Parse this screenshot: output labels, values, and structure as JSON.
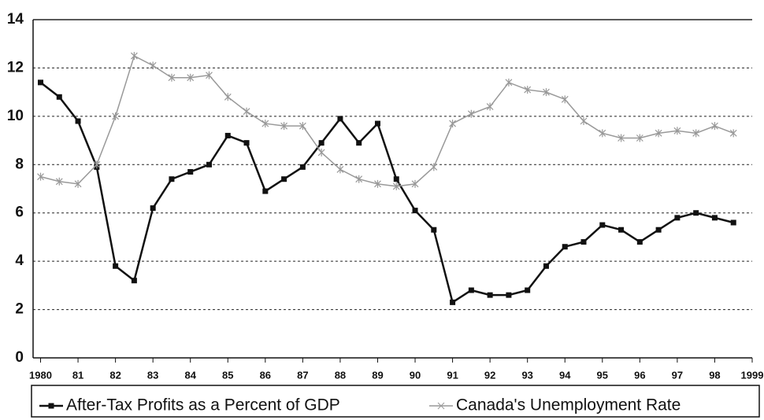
{
  "chart_data": {
    "type": "line",
    "x": [
      1980,
      1980.5,
      1981,
      1981.5,
      1982,
      1982.5,
      1983,
      1983.5,
      1984,
      1984.5,
      1985,
      1985.5,
      1986,
      1986.5,
      1987,
      1987.5,
      1988,
      1988.5,
      1989,
      1989.5,
      1990,
      1990.5,
      1991,
      1991.5,
      1992,
      1992.5,
      1993,
      1993.5,
      1994,
      1994.5,
      1995,
      1995.5,
      1996,
      1996.5,
      1997,
      1997.5,
      1998,
      1998.5
    ],
    "series": [
      {
        "name": "After-Tax Profits as a Percent of GDP",
        "color": "#111111",
        "values": [
          11.4,
          10.8,
          9.8,
          7.9,
          3.8,
          3.2,
          6.2,
          7.4,
          7.7,
          8.0,
          9.2,
          8.9,
          6.9,
          7.4,
          7.9,
          8.9,
          9.9,
          8.9,
          9.7,
          7.4,
          6.1,
          5.3,
          2.3,
          2.8,
          2.6,
          2.6,
          2.8,
          3.8,
          4.6,
          4.8,
          5.5,
          5.3,
          4.8,
          5.3,
          5.8,
          6.0,
          5.8,
          5.6
        ]
      },
      {
        "name": "Canada's Unemployment Rate",
        "color": "#999999",
        "values": [
          7.5,
          7.3,
          7.2,
          8.0,
          10.0,
          12.5,
          12.1,
          11.6,
          11.6,
          11.7,
          10.8,
          10.2,
          9.7,
          9.6,
          9.6,
          8.5,
          7.8,
          7.4,
          7.2,
          7.1,
          7.2,
          7.9,
          9.7,
          10.1,
          10.4,
          11.4,
          11.1,
          11.0,
          10.7,
          9.8,
          9.3,
          9.1,
          9.1,
          9.3,
          9.4,
          9.3,
          9.6,
          9.3
        ]
      }
    ],
    "xlim": [
      1979.8,
      1999
    ],
    "xticks": [
      1980,
      {
        "value": 1981,
        "label": "81"
      },
      {
        "value": 1982,
        "label": "82"
      },
      {
        "value": 1983,
        "label": "83"
      },
      {
        "value": 1984,
        "label": "84"
      },
      {
        "value": 1985,
        "label": "85"
      },
      {
        "value": 1986,
        "label": "86"
      },
      {
        "value": 1987,
        "label": "87"
      },
      {
        "value": 1988,
        "label": "88"
      },
      {
        "value": 1989,
        "label": "89"
      },
      {
        "value": 1990,
        "label": "90"
      },
      {
        "value": 1991,
        "label": "91"
      },
      {
        "value": 1992,
        "label": "92"
      },
      {
        "value": 1993,
        "label": "93"
      },
      {
        "value": 1994,
        "label": "94"
      },
      {
        "value": 1995,
        "label": "95"
      },
      {
        "value": 1996,
        "label": "96"
      },
      {
        "value": 1997,
        "label": "97"
      },
      {
        "value": 1998,
        "label": "98"
      },
      1999
    ],
    "ylim": [
      0,
      14
    ],
    "yticks": [
      0,
      2,
      4,
      6,
      8,
      10,
      12,
      14
    ],
    "grid": true,
    "legend": "bottom"
  }
}
